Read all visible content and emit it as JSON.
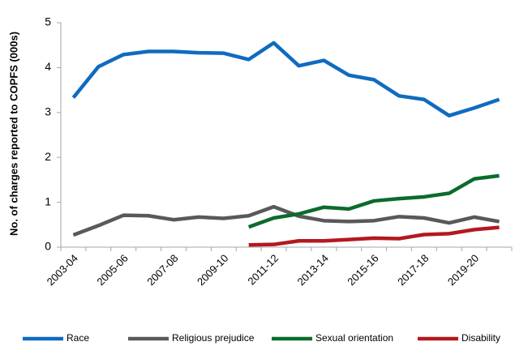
{
  "chart_data": {
    "type": "line",
    "y_label": "No. of charges reported to COPFS (000s)",
    "categories": [
      "2003-04",
      null,
      "2005-06",
      null,
      "2007-08",
      null,
      "2009-10",
      null,
      "2011-12",
      null,
      "2013-14",
      null,
      "2015-16",
      null,
      "2017-18",
      null,
      "2019-20",
      null
    ],
    "series": [
      {
        "name": "Race",
        "color": "#0f6bbf",
        "values": [
          3.33,
          4.02,
          4.29,
          4.36,
          4.36,
          4.33,
          4.32,
          4.18,
          4.55,
          4.04,
          4.16,
          3.83,
          3.73,
          3.37,
          3.29,
          2.93,
          3.1,
          3.29
        ]
      },
      {
        "name": "Religious prejudice",
        "color": "#595959",
        "values": [
          0.27,
          0.48,
          0.71,
          0.7,
          0.61,
          0.67,
          0.64,
          0.7,
          0.9,
          0.69,
          0.59,
          0.57,
          0.59,
          0.68,
          0.65,
          0.54,
          0.67,
          0.57
        ]
      },
      {
        "name": "Sexual orientation",
        "color": "#0b6b2c",
        "values": [
          null,
          null,
          null,
          null,
          null,
          null,
          null,
          0.45,
          0.65,
          0.74,
          0.89,
          0.85,
          1.03,
          1.08,
          1.12,
          1.2,
          1.52,
          1.59
        ]
      },
      {
        "name": "Disability",
        "color": "#b3191f",
        "values": [
          null,
          null,
          null,
          null,
          null,
          null,
          null,
          0.05,
          0.06,
          0.14,
          0.14,
          0.17,
          0.2,
          0.19,
          0.28,
          0.3,
          0.39,
          0.44
        ]
      }
    ],
    "ylim": [
      0,
      5
    ],
    "yticks": [
      0,
      1,
      2,
      3,
      4,
      5
    ],
    "grid": false,
    "legend": "bottom"
  }
}
